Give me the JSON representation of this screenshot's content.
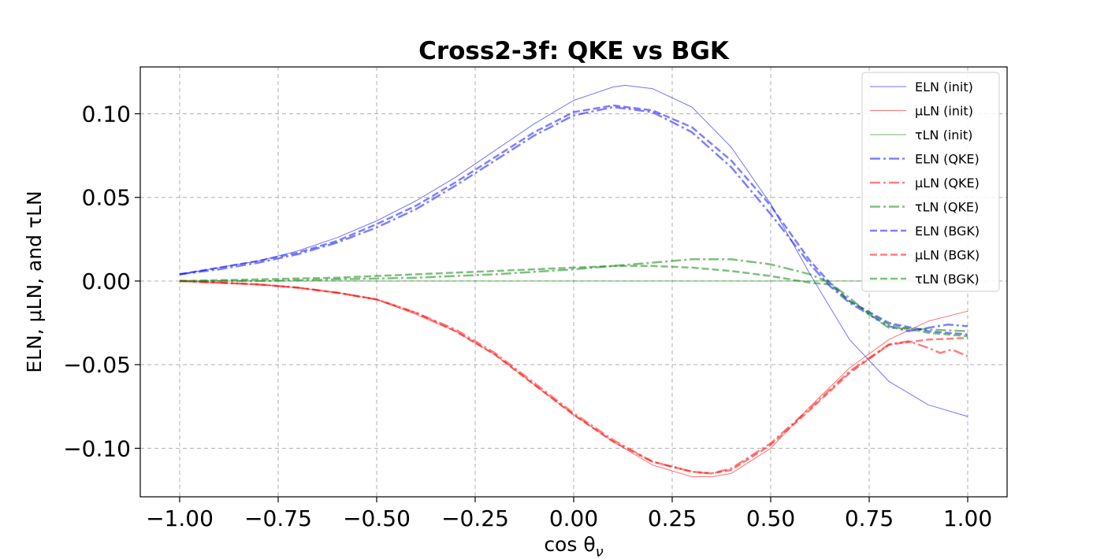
{
  "chart_data": {
    "type": "line",
    "title": "Cross2-3f: QKE vs BGK",
    "xlabel": "cos θ",
    "xlabel_subscript": "ν",
    "ylabel": "ELN, μLN, and τLN",
    "xlim": [
      -1.1,
      1.1
    ],
    "ylim": [
      -0.129,
      0.128
    ],
    "grid": true,
    "legend_position": "top-right",
    "x_ticks": [
      -1.0,
      -0.75,
      -0.5,
      -0.25,
      0.0,
      0.25,
      0.5,
      0.75,
      1.0
    ],
    "x_tick_labels": [
      "−1.00",
      "−0.75",
      "−0.50",
      "−0.25",
      "0.00",
      "0.25",
      "0.50",
      "0.75",
      "1.00"
    ],
    "y_ticks": [
      -0.1,
      -0.05,
      0.0,
      0.05,
      0.1
    ],
    "y_tick_labels": [
      "−0.10",
      "−0.05",
      "0.00",
      "0.05",
      "0.10"
    ],
    "series": [
      {
        "name": "ELN (init)",
        "color": "#0000ff",
        "opacity": 0.55,
        "style": "solid",
        "width": 1,
        "x": [
          -1.0,
          -0.9,
          -0.8,
          -0.7,
          -0.6,
          -0.5,
          -0.4,
          -0.3,
          -0.2,
          -0.1,
          0.0,
          0.1,
          0.13,
          0.2,
          0.3,
          0.4,
          0.5,
          0.6,
          0.7,
          0.8,
          0.9,
          1.0
        ],
        "values": [
          0.004,
          0.008,
          0.012,
          0.018,
          0.026,
          0.036,
          0.048,
          0.062,
          0.078,
          0.094,
          0.108,
          0.116,
          0.117,
          0.115,
          0.104,
          0.08,
          0.046,
          0.004,
          -0.035,
          -0.06,
          -0.074,
          -0.081
        ]
      },
      {
        "name": "μLN (init)",
        "color": "#ff0000",
        "opacity": 0.55,
        "style": "solid",
        "width": 1,
        "x": [
          -1.0,
          -0.9,
          -0.8,
          -0.7,
          -0.6,
          -0.5,
          -0.4,
          -0.3,
          -0.2,
          -0.1,
          0.0,
          0.1,
          0.2,
          0.3,
          0.35,
          0.4,
          0.5,
          0.6,
          0.7,
          0.8,
          0.9,
          1.0
        ],
        "values": [
          0.0,
          -0.001,
          -0.002,
          -0.004,
          -0.007,
          -0.011,
          -0.02,
          -0.03,
          -0.044,
          -0.062,
          -0.08,
          -0.096,
          -0.11,
          -0.117,
          -0.117,
          -0.115,
          -0.1,
          -0.075,
          -0.052,
          -0.035,
          -0.024,
          -0.018
        ]
      },
      {
        "name": "τLN (init)",
        "color": "#008000",
        "opacity": 0.55,
        "style": "solid",
        "width": 1,
        "x": [
          -1.0,
          1.0
        ],
        "values": [
          0.0,
          0.0
        ]
      },
      {
        "name": "ELN (QKE)",
        "color": "#0000ff",
        "opacity": 0.5,
        "style": "dashdot",
        "width": 2.5,
        "x": [
          -1.0,
          -0.9,
          -0.8,
          -0.7,
          -0.6,
          -0.5,
          -0.4,
          -0.3,
          -0.2,
          -0.1,
          0.0,
          0.1,
          0.2,
          0.3,
          0.4,
          0.5,
          0.6,
          0.65,
          0.7,
          0.8,
          0.85,
          0.9,
          0.95,
          1.0
        ],
        "values": [
          0.004,
          0.007,
          0.011,
          0.016,
          0.023,
          0.032,
          0.043,
          0.057,
          0.072,
          0.087,
          0.099,
          0.104,
          0.101,
          0.089,
          0.068,
          0.04,
          0.01,
          -0.003,
          -0.013,
          -0.027,
          -0.03,
          -0.028,
          -0.026,
          -0.027
        ]
      },
      {
        "name": "μLN (QKE)",
        "color": "#ff0000",
        "opacity": 0.5,
        "style": "dashdot",
        "width": 2.5,
        "x": [
          -1.0,
          -0.9,
          -0.8,
          -0.7,
          -0.6,
          -0.5,
          -0.4,
          -0.3,
          -0.2,
          -0.1,
          0.0,
          0.1,
          0.2,
          0.3,
          0.35,
          0.4,
          0.5,
          0.6,
          0.7,
          0.8,
          0.85,
          0.9,
          0.93,
          0.96,
          1.0
        ],
        "values": [
          0.0,
          -0.001,
          -0.002,
          -0.004,
          -0.007,
          -0.011,
          -0.019,
          -0.029,
          -0.043,
          -0.061,
          -0.079,
          -0.095,
          -0.108,
          -0.114,
          -0.115,
          -0.112,
          -0.097,
          -0.076,
          -0.054,
          -0.038,
          -0.036,
          -0.04,
          -0.043,
          -0.041,
          -0.045
        ]
      },
      {
        "name": "τLN (QKE)",
        "color": "#008000",
        "opacity": 0.5,
        "style": "dashdot",
        "width": 2.5,
        "x": [
          -1.0,
          -0.8,
          -0.6,
          -0.4,
          -0.2,
          0.0,
          0.1,
          0.2,
          0.3,
          0.4,
          0.5,
          0.6,
          0.65,
          0.7,
          0.75,
          0.8,
          0.9,
          1.0
        ],
        "values": [
          0.0,
          0.0,
          0.001,
          0.002,
          0.004,
          0.007,
          0.009,
          0.011,
          0.013,
          0.013,
          0.01,
          0.004,
          -0.001,
          -0.01,
          -0.02,
          -0.028,
          -0.029,
          -0.03
        ]
      },
      {
        "name": "ELN (BGK)",
        "color": "#0000ff",
        "opacity": 0.5,
        "style": "dashed",
        "width": 2.5,
        "x": [
          -1.0,
          -0.9,
          -0.8,
          -0.7,
          -0.6,
          -0.5,
          -0.4,
          -0.3,
          -0.2,
          -0.1,
          0.0,
          0.1,
          0.2,
          0.3,
          0.4,
          0.5,
          0.6,
          0.65,
          0.7,
          0.8,
          0.9,
          1.0
        ],
        "values": [
          0.004,
          0.008,
          0.012,
          0.017,
          0.024,
          0.034,
          0.045,
          0.059,
          0.074,
          0.089,
          0.101,
          0.105,
          0.102,
          0.092,
          0.072,
          0.045,
          0.012,
          -0.001,
          -0.012,
          -0.025,
          -0.03,
          -0.032
        ]
      },
      {
        "name": "μLN (BGK)",
        "color": "#ff0000",
        "opacity": 0.5,
        "style": "dashed",
        "width": 2.5,
        "x": [
          -1.0,
          -0.9,
          -0.8,
          -0.7,
          -0.6,
          -0.5,
          -0.4,
          -0.3,
          -0.2,
          -0.1,
          0.0,
          0.1,
          0.2,
          0.3,
          0.35,
          0.4,
          0.5,
          0.6,
          0.7,
          0.8,
          0.9,
          1.0
        ],
        "values": [
          0.0,
          -0.001,
          -0.002,
          -0.004,
          -0.007,
          -0.011,
          -0.019,
          -0.03,
          -0.044,
          -0.062,
          -0.08,
          -0.096,
          -0.108,
          -0.114,
          -0.115,
          -0.113,
          -0.098,
          -0.077,
          -0.055,
          -0.038,
          -0.035,
          -0.034
        ]
      },
      {
        "name": "τLN (BGK)",
        "color": "#008000",
        "opacity": 0.5,
        "style": "dashed",
        "width": 2.5,
        "x": [
          -1.0,
          -0.8,
          -0.6,
          -0.4,
          -0.2,
          0.0,
          0.1,
          0.2,
          0.3,
          0.4,
          0.5,
          0.6,
          0.65,
          0.7,
          0.8,
          0.9,
          1.0
        ],
        "values": [
          0.0,
          0.001,
          0.002,
          0.004,
          0.006,
          0.008,
          0.009,
          0.009,
          0.008,
          0.006,
          0.003,
          -0.001,
          -0.002,
          -0.012,
          -0.026,
          -0.031,
          -0.033
        ]
      }
    ]
  }
}
